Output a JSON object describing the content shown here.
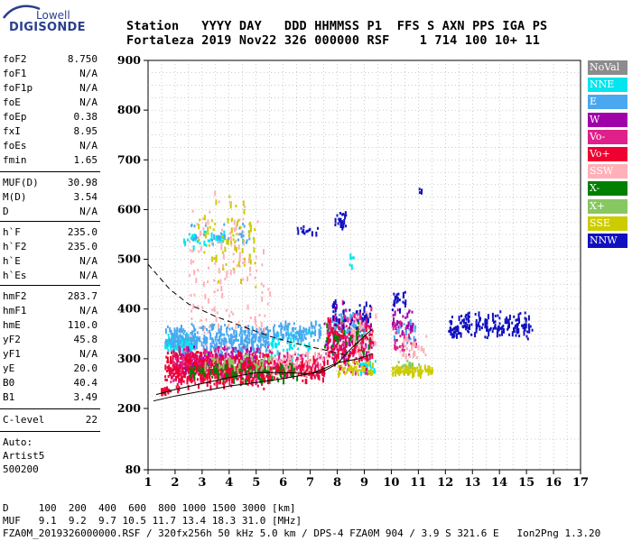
{
  "logo": {
    "line1": "Lowell",
    "line2": "DIGISONDE"
  },
  "header": {
    "labels": "Station   YYYY DAY   DDD HHMMSS P1  FFS S AXN PPS IGA PS",
    "values": "Fortaleza 2019 Nov22 326 000000 RSF    1 714 100 10+ 11"
  },
  "params": {
    "group1": [
      {
        "key": "foF2",
        "value": "8.750"
      },
      {
        "key": "foF1",
        "value": "N/A"
      },
      {
        "key": "foF1p",
        "value": "N/A"
      },
      {
        "key": "foE",
        "value": "N/A"
      },
      {
        "key": "foEp",
        "value": "0.38"
      },
      {
        "key": "fxI",
        "value": "8.95"
      },
      {
        "key": "foEs",
        "value": "N/A"
      },
      {
        "key": "fmin",
        "value": "1.65"
      }
    ],
    "group2": [
      {
        "key": "MUF(D)",
        "value": "30.98"
      },
      {
        "key": "M(D)",
        "value": "3.54"
      },
      {
        "key": "D",
        "value": "N/A"
      }
    ],
    "group3": [
      {
        "key": "h`F",
        "value": "235.0"
      },
      {
        "key": "h`F2",
        "value": "235.0"
      },
      {
        "key": "h`E",
        "value": "N/A"
      },
      {
        "key": "h`Es",
        "value": "N/A"
      }
    ],
    "group4": [
      {
        "key": "hmF2",
        "value": "283.7"
      },
      {
        "key": "hmF1",
        "value": "N/A"
      },
      {
        "key": "hmE",
        "value": "110.0"
      },
      {
        "key": "yF2",
        "value": "45.8"
      },
      {
        "key": "yF1",
        "value": "N/A"
      },
      {
        "key": "yE",
        "value": "20.0"
      },
      {
        "key": "B0",
        "value": "40.4"
      },
      {
        "key": "B1",
        "value": "3.49"
      }
    ],
    "group5": [
      {
        "key": "C-level",
        "value": "22"
      }
    ],
    "auto": [
      "Auto:",
      "Artist5",
      "500200"
    ]
  },
  "legend": [
    {
      "label": "NoVal",
      "color": "#8c8c8c"
    },
    {
      "label": "NNE",
      "color": "#00e5ee"
    },
    {
      "label": "E",
      "color": "#4aa8f0"
    },
    {
      "label": "W",
      "color": "#a000a8"
    },
    {
      "label": "Vo-",
      "color": "#e0208a"
    },
    {
      "label": "Vo+",
      "color": "#ee0030"
    },
    {
      "label": "SSW",
      "color": "#ffb0b8"
    },
    {
      "label": "X-",
      "color": "#008000"
    },
    {
      "label": "X+",
      "color": "#88c860"
    },
    {
      "label": "SSE",
      "color": "#cccc00"
    },
    {
      "label": "NNW",
      "color": "#1010c0"
    }
  ],
  "footer": {
    "d_line": "D     100  200  400  600  800 1000 1500 3000 [km]",
    "muf_line": "MUF   9.1  9.2  9.7 10.5 11.7 13.4 18.3 31.0 [MHz]",
    "file_line": "FZA0M_2019326000000.RSF / 320fx256h 50 kHz 5.0 km / DPS-4 FZA0M 904 / 3.9 S 321.6 E   Ion2Png 1.3.20"
  },
  "chart_data": {
    "type": "scatter",
    "x_ticks": [
      "1",
      "2",
      "3",
      "4",
      "5",
      "6",
      "7",
      "8",
      "9",
      "10",
      "11",
      "12",
      "13",
      "14",
      "15",
      "16",
      "17"
    ],
    "y_ticks": [
      "80",
      "200",
      "300",
      "400",
      "500",
      "600",
      "700",
      "800",
      "900"
    ],
    "xlim": [
      1,
      17
    ],
    "y_axis_break": "80 at bottom, 200 to 900 linear above",
    "grid": true,
    "legend_position": "right",
    "series": [
      {
        "name": "NNE",
        "clusters": [
          {
            "f": [
              1.6,
              2.8
            ],
            "h": [
              315,
              355
            ],
            "n": 140
          },
          {
            "f": [
              2.3,
              3.8
            ],
            "h": [
              525,
              560
            ],
            "n": 40
          },
          {
            "f": [
              5.5,
              7.0
            ],
            "h": [
              300,
              370
            ],
            "n": 60
          },
          {
            "f": [
              8.8,
              9.4
            ],
            "h": [
              270,
              300
            ],
            "n": 30
          },
          {
            "f": [
              8.4,
              8.6
            ],
            "h": [
              480,
              520
            ],
            "n": 6
          }
        ]
      },
      {
        "name": "E",
        "clusters": [
          {
            "f": [
              1.6,
              5.5
            ],
            "h": [
              310,
              375
            ],
            "n": 350
          },
          {
            "f": [
              2.5,
              4.8
            ],
            "h": [
              520,
              580
            ],
            "n": 35
          },
          {
            "f": [
              5.6,
              7.4
            ],
            "h": [
              330,
              380
            ],
            "n": 90
          },
          {
            "f": [
              7.8,
              9.1
            ],
            "h": [
              330,
              400
            ],
            "n": 80
          },
          {
            "f": [
              10.0,
              10.9
            ],
            "h": [
              330,
              390
            ],
            "n": 25
          }
        ]
      },
      {
        "name": "W",
        "clusters": [
          {
            "f": [
              2.0,
              5.0
            ],
            "h": [
              270,
              330
            ],
            "n": 200
          },
          {
            "f": [
              7.5,
              9.3
            ],
            "h": [
              280,
              420
            ],
            "n": 90
          },
          {
            "f": [
              10.0,
              10.8
            ],
            "h": [
              330,
              420
            ],
            "n": 30
          }
        ]
      },
      {
        "name": "Vo-",
        "clusters": [
          {
            "f": [
              1.8,
              5.5
            ],
            "h": [
              250,
              330
            ],
            "n": 330
          },
          {
            "f": [
              5.5,
              7.5
            ],
            "h": [
              260,
              320
            ],
            "n": 110
          },
          {
            "f": [
              7.6,
              9.3
            ],
            "h": [
              270,
              420
            ],
            "n": 120
          },
          {
            "f": [
              10.0,
              10.9
            ],
            "h": [
              300,
              380
            ],
            "n": 30
          }
        ]
      },
      {
        "name": "Vo+",
        "clusters": [
          {
            "f": [
              1.6,
              5.5
            ],
            "h": [
              240,
              320
            ],
            "n": 420
          },
          {
            "f": [
              5.5,
              7.5
            ],
            "h": [
              255,
              310
            ],
            "n": 130
          },
          {
            "f": [
              7.6,
              9.3
            ],
            "h": [
              270,
              390
            ],
            "n": 120
          },
          {
            "f": [
              1.4,
              1.8
            ],
            "h": [
              230,
              245
            ],
            "n": 25
          }
        ]
      },
      {
        "name": "SSW",
        "clusters": [
          {
            "f": [
              2.5,
              5.5
            ],
            "h": [
              280,
              660
            ],
            "n": 140
          },
          {
            "f": [
              5.5,
              7.6
            ],
            "h": [
              260,
              330
            ],
            "n": 60
          },
          {
            "f": [
              8.5,
              9.4
            ],
            "h": [
              300,
              400
            ],
            "n": 50
          },
          {
            "f": [
              10.3,
              11.3
            ],
            "h": [
              290,
              350
            ],
            "n": 30
          }
        ]
      },
      {
        "name": "X-",
        "clusters": [
          {
            "f": [
              2.5,
              6.5
            ],
            "h": [
              255,
              300
            ],
            "n": 110
          },
          {
            "f": [
              7.5,
              9.2
            ],
            "h": [
              280,
              400
            ],
            "n": 30
          }
        ]
      },
      {
        "name": "X+",
        "clusters": [
          {
            "f": [
              3.0,
              5.8
            ],
            "h": [
              270,
              315
            ],
            "n": 50
          },
          {
            "f": [
              10.2,
              11.0
            ],
            "h": [
              275,
              300
            ],
            "n": 20
          }
        ]
      },
      {
        "name": "SSE",
        "clusters": [
          {
            "f": [
              2.8,
              5.0
            ],
            "h": [
              440,
              640
            ],
            "n": 70
          },
          {
            "f": [
              8.0,
              9.3
            ],
            "h": [
              270,
              300
            ],
            "n": 50
          },
          {
            "f": [
              10.0,
              11.5
            ],
            "h": [
              270,
              290
            ],
            "n": 90
          }
        ]
      },
      {
        "name": "NNW",
        "clusters": [
          {
            "f": [
              6.5,
              7.3
            ],
            "h": [
              550,
              570
            ],
            "n": 15
          },
          {
            "f": [
              7.8,
              8.3
            ],
            "h": [
              555,
              610
            ],
            "n": 25
          },
          {
            "f": [
              7.8,
              9.2
            ],
            "h": [
              360,
              430
            ],
            "n": 40
          },
          {
            "f": [
              10.0,
              10.5
            ],
            "h": [
              400,
              440
            ],
            "n": 20
          },
          {
            "f": [
              12.1,
              15.2
            ],
            "h": [
              340,
              400
            ],
            "n": 180
          },
          {
            "f": [
              11.0,
              11.1
            ],
            "h": [
              625,
              650
            ],
            "n": 4
          }
        ]
      }
    ],
    "profile_lines": [
      {
        "name": "virtual",
        "points": [
          [
            1.2,
            215
          ],
          [
            2,
            225
          ],
          [
            3,
            235
          ],
          [
            4,
            245
          ],
          [
            5,
            252
          ],
          [
            6,
            260
          ],
          [
            7,
            270
          ],
          [
            7.5,
            280
          ],
          [
            8,
            292
          ],
          [
            8.8,
            300
          ],
          [
            9.3,
            310
          ]
        ]
      },
      {
        "name": "dashed",
        "points": [
          [
            1.0,
            490
          ],
          [
            1.8,
            440
          ],
          [
            2.5,
            410
          ],
          [
            3.5,
            385
          ],
          [
            4.5,
            365
          ],
          [
            5.5,
            345
          ],
          [
            6.5,
            330
          ],
          [
            7.5,
            318
          ],
          [
            8.5,
            305
          ]
        ]
      },
      {
        "name": "ordinary",
        "points": [
          [
            1.3,
            228
          ],
          [
            2,
            238
          ],
          [
            3,
            250
          ],
          [
            4,
            262
          ],
          [
            5,
            272
          ],
          [
            6,
            272
          ],
          [
            7,
            270
          ],
          [
            7.5,
            275
          ],
          [
            8,
            290
          ],
          [
            8.5,
            320
          ],
          [
            9.0,
            345
          ],
          [
            9.3,
            360
          ]
        ]
      }
    ]
  }
}
